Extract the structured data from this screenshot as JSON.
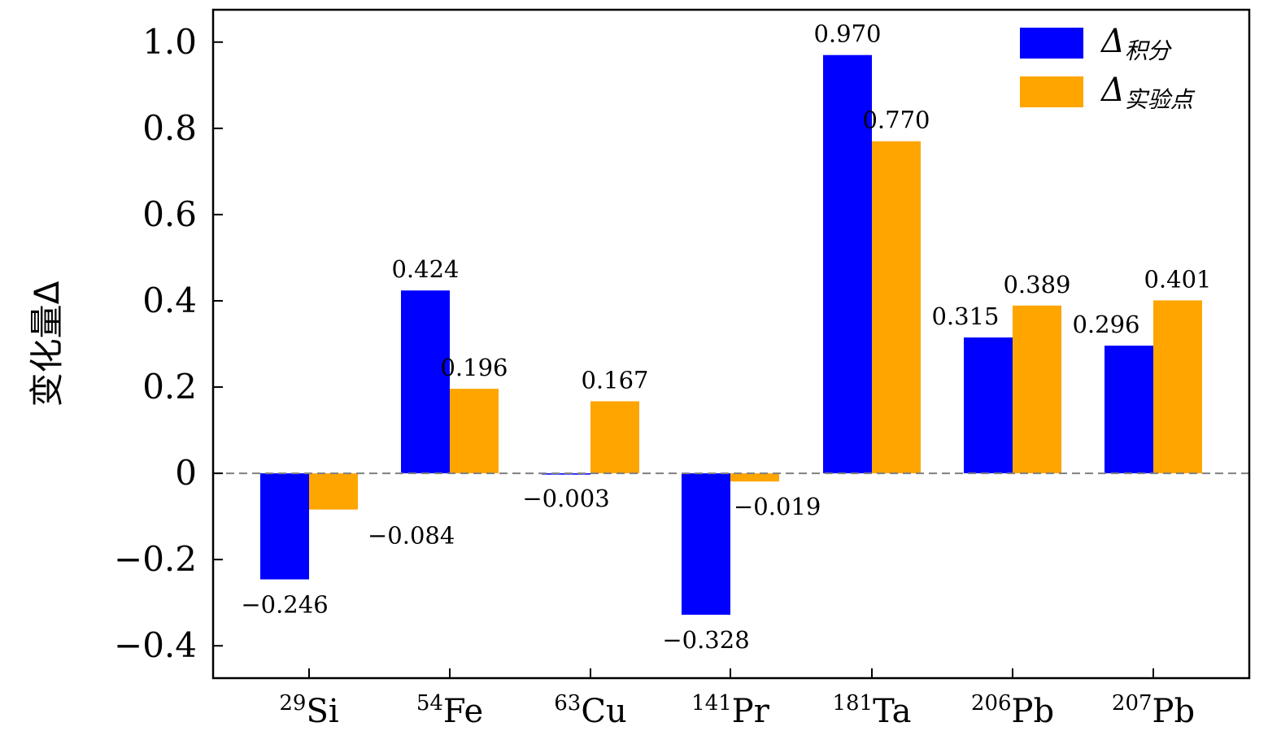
{
  "chart_data": {
    "type": "bar",
    "title": "",
    "xlabel": "",
    "ylabel": "变化量Δ",
    "ylim": [
      -0.475,
      1.075
    ],
    "yticks": [
      -0.4,
      -0.2,
      0,
      0.2,
      0.4,
      0.6,
      0.8,
      1.0
    ],
    "ytick_labels": [
      "−0.4",
      "−0.2",
      "0",
      "0.2",
      "0.4",
      "0.6",
      "0.8",
      "1.0"
    ],
    "zero_line": "dashed",
    "grid": false,
    "legend_position": "top-right",
    "categories": [
      {
        "mass": "29",
        "symbol": "Si"
      },
      {
        "mass": "54",
        "symbol": "Fe"
      },
      {
        "mass": "63",
        "symbol": "Cu"
      },
      {
        "mass": "141",
        "symbol": "Pr"
      },
      {
        "mass": "181",
        "symbol": "Ta"
      },
      {
        "mass": "206",
        "symbol": "Pb"
      },
      {
        "mass": "207",
        "symbol": "Pb"
      }
    ],
    "series": [
      {
        "name": "Δ积分",
        "symbol": "Δ",
        "subscript": "积分",
        "color": "#0000ff",
        "values": [
          -0.246,
          0.424,
          -0.003,
          -0.328,
          0.97,
          0.315,
          0.296
        ],
        "labels": [
          "−0.246",
          "0.424",
          "−0.003",
          "−0.328",
          "0.970",
          "0.315",
          "0.296"
        ]
      },
      {
        "name": "Δ实验点",
        "symbol": "Δ",
        "subscript": "实验点",
        "color": "#ffa500",
        "values": [
          -0.084,
          0.196,
          0.167,
          -0.019,
          0.77,
          0.389,
          0.401
        ],
        "labels": [
          "−0.084",
          "0.196",
          "0.167",
          "−0.019",
          "0.770",
          "0.389",
          "0.401"
        ]
      }
    ]
  }
}
